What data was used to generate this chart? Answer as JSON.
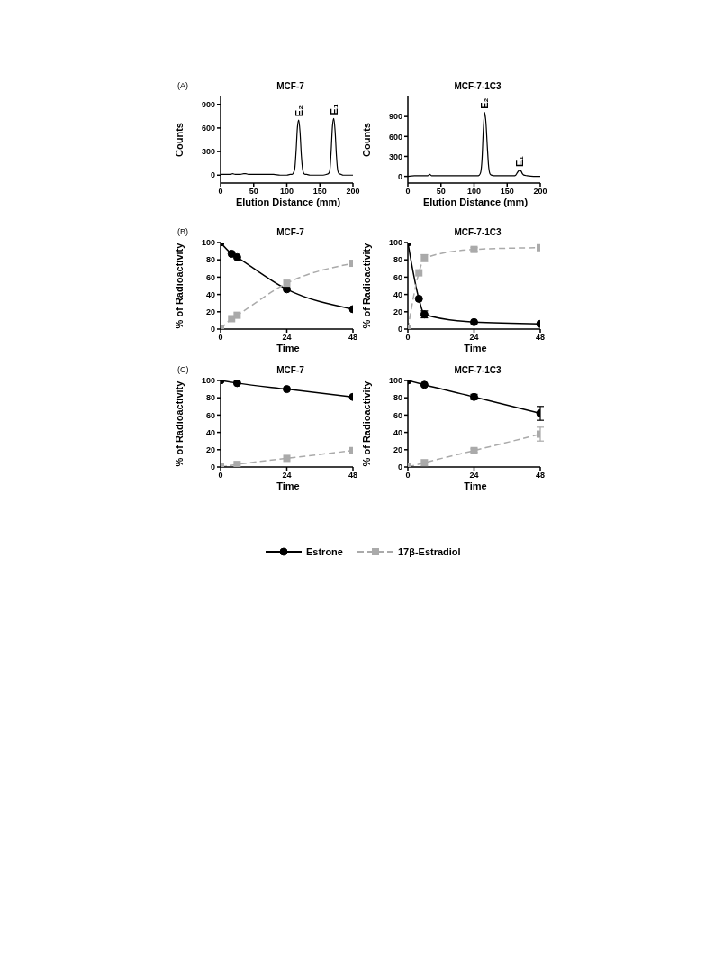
{
  "chart_data": [
    {
      "type": "line",
      "title": "MCF-7",
      "xlabel": "Elution Distance (mm)",
      "ylabel": "Counts",
      "annotations": [
        "(A)",
        {
          "text": "E₂",
          "x": 118,
          "y": 700
        },
        {
          "text": "E₁",
          "x": 171,
          "y": 720
        }
      ],
      "x": [
        0,
        5,
        10,
        15,
        18,
        22,
        26,
        30,
        35,
        38,
        42,
        50,
        60,
        68,
        70,
        75,
        80,
        90,
        100,
        105,
        108,
        110,
        112,
        114,
        116,
        118,
        120,
        122,
        124,
        126,
        128,
        130,
        135,
        140,
        150,
        155,
        160,
        163,
        165,
        167,
        169,
        171,
        173,
        175,
        177,
        179,
        182,
        185,
        190,
        195,
        200
      ],
      "values": [
        10,
        10,
        10,
        10,
        20,
        10,
        10,
        10,
        20,
        20,
        10,
        10,
        10,
        10,
        10,
        10,
        10,
        0,
        0,
        10,
        10,
        30,
        80,
        300,
        600,
        700,
        550,
        250,
        70,
        20,
        10,
        10,
        0,
        0,
        0,
        0,
        10,
        20,
        60,
        300,
        620,
        720,
        560,
        250,
        60,
        20,
        10,
        0,
        0,
        0,
        0
      ],
      "color": "#000000",
      "marker": "none",
      "xlim": [
        0,
        200
      ],
      "xticks": [
        0,
        50,
        100,
        150,
        200
      ],
      "ylim": [
        -100,
        1000
      ],
      "yticks": [
        0,
        300,
        600,
        900
      ]
    },
    {
      "type": "line",
      "title": "MCF-7-1C3",
      "xlabel": "Elution Distance (mm)",
      "ylabel": "Counts",
      "annotations": [
        {
          "text": "E₂",
          "x": 116,
          "y": 960
        },
        {
          "text": "E₁",
          "x": 169,
          "y": 90
        }
      ],
      "x": [
        0,
        10,
        20,
        30,
        33,
        36,
        40,
        50,
        60,
        70,
        80,
        90,
        100,
        105,
        108,
        110,
        112,
        114,
        116,
        118,
        120,
        122,
        124,
        126,
        130,
        140,
        150,
        155,
        160,
        163,
        165,
        167,
        169,
        171,
        173,
        175,
        180,
        190,
        200
      ],
      "values": [
        0,
        10,
        10,
        10,
        30,
        10,
        10,
        10,
        10,
        10,
        10,
        10,
        10,
        10,
        20,
        60,
        250,
        700,
        960,
        800,
        450,
        150,
        40,
        20,
        10,
        10,
        10,
        10,
        10,
        20,
        50,
        80,
        90,
        80,
        40,
        20,
        10,
        0,
        0
      ],
      "color": "#000000",
      "marker": "none",
      "xlim": [
        0,
        200
      ],
      "xticks": [
        0,
        50,
        100,
        150,
        200
      ],
      "ylim": [
        -100,
        1200
      ],
      "yticks": [
        0,
        300,
        600,
        900
      ]
    },
    {
      "type": "line",
      "title": "MCF-7",
      "xlabel": "Time",
      "ylabel": "% of Radioactivity",
      "annotations": [
        "(B)"
      ],
      "x": [
        0,
        4,
        6,
        24,
        48
      ],
      "series": [
        {
          "color": "#000000",
          "marker": "circle",
          "line_style": "solid",
          "values": [
            100,
            87,
            83,
            46,
            23
          ]
        },
        {
          "color": "#aaaaaa",
          "marker": "square",
          "line_style": "dashed",
          "values": [
            0,
            12,
            16,
            53,
            76
          ]
        }
      ],
      "xlim": [
        0,
        48
      ],
      "xticks": [
        0,
        24,
        48
      ],
      "ylim": [
        0,
        100
      ],
      "yticks": [
        0,
        20,
        40,
        60,
        80,
        100
      ]
    },
    {
      "type": "line",
      "title": "MCF-7-1C3",
      "xlabel": "Time",
      "ylabel": "% of Radioactivity",
      "x": [
        0,
        4,
        6,
        24,
        48
      ],
      "series": [
        {
          "color": "#000000",
          "marker": "circle",
          "line_style": "solid",
          "values": [
            100,
            35,
            17,
            8,
            6
          ],
          "errors": [
            null,
            null,
            4,
            null,
            null
          ]
        },
        {
          "color": "#aaaaaa",
          "marker": "square",
          "line_style": "dashed",
          "values": [
            0,
            65,
            82,
            92,
            94
          ],
          "errors": [
            null,
            null,
            4,
            2,
            null
          ]
        }
      ],
      "xlim": [
        0,
        48
      ],
      "xticks": [
        0,
        24,
        48
      ],
      "ylim": [
        0,
        100
      ],
      "yticks": [
        0,
        20,
        40,
        60,
        80,
        100
      ]
    },
    {
      "type": "line",
      "title": "MCF-7",
      "xlabel": "Time",
      "ylabel": "% of Radioactivity",
      "annotations": [
        "(C)"
      ],
      "x": [
        0,
        6,
        24,
        48
      ],
      "series": [
        {
          "color": "#000000",
          "marker": "circle",
          "line_style": "solid",
          "values": [
            100,
            97,
            90,
            81
          ]
        },
        {
          "color": "#aaaaaa",
          "marker": "square",
          "line_style": "dashed",
          "values": [
            0,
            3,
            10,
            19
          ]
        }
      ],
      "xlim": [
        0,
        48
      ],
      "xticks": [
        0,
        24,
        48
      ],
      "ylim": [
        0,
        100
      ],
      "yticks": [
        0,
        20,
        40,
        60,
        80,
        100
      ]
    },
    {
      "type": "line",
      "title": "MCF-7-1C3",
      "xlabel": "Time",
      "ylabel": "% of Radioactivity",
      "x": [
        0,
        6,
        24,
        48
      ],
      "legend": "bottom",
      "series": [
        {
          "name": "Estrone",
          "color": "#000000",
          "marker": "circle",
          "line_style": "solid",
          "values": [
            100,
            95,
            81,
            62
          ],
          "errors": [
            null,
            null,
            3,
            8
          ]
        },
        {
          "name": "17β-Estradiol",
          "color": "#aaaaaa",
          "marker": "square",
          "line_style": "dashed",
          "values": [
            0,
            5,
            19,
            38
          ],
          "errors": [
            null,
            null,
            2,
            8
          ]
        }
      ],
      "xlim": [
        0,
        48
      ],
      "xticks": [
        0,
        24,
        48
      ],
      "ylim": [
        0,
        100
      ],
      "yticks": [
        0,
        20,
        40,
        60,
        80,
        100
      ]
    }
  ]
}
